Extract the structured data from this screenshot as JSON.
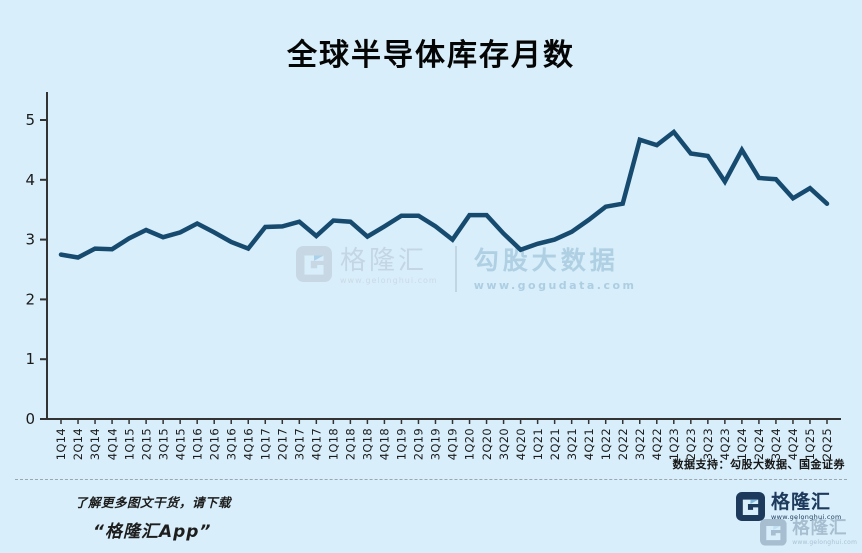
{
  "title": "全球半导体库存月数",
  "chart_data": {
    "type": "line",
    "title": "全球半导体库存月数",
    "xlabel": "",
    "ylabel": "",
    "ylim": [
      0,
      5
    ],
    "yticks": [
      0,
      1,
      2,
      3,
      4,
      5
    ],
    "grid": "off",
    "legend": "none",
    "categories": [
      "1Q14",
      "2Q14",
      "3Q14",
      "4Q14",
      "1Q15",
      "2Q15",
      "3Q15",
      "4Q15",
      "1Q16",
      "2Q16",
      "3Q16",
      "4Q16",
      "1Q17",
      "2Q17",
      "3Q17",
      "4Q17",
      "1Q18",
      "2Q18",
      "3Q18",
      "4Q18",
      "1Q19",
      "2Q19",
      "3Q19",
      "4Q19",
      "1Q20",
      "2Q20",
      "3Q20",
      "4Q20",
      "1Q21",
      "2Q21",
      "3Q21",
      "4Q21",
      "1Q22",
      "2Q22",
      "3Q22",
      "4Q22",
      "1Q23",
      "2Q23",
      "3Q23",
      "4Q23",
      "1Q24",
      "2Q24",
      "3Q24",
      "4Q24",
      "1Q25",
      "2Q25"
    ],
    "values": [
      2.75,
      2.7,
      2.85,
      2.84,
      3.02,
      3.16,
      3.04,
      3.12,
      3.27,
      3.12,
      2.96,
      2.85,
      3.21,
      3.22,
      3.3,
      3.06,
      3.32,
      3.3,
      3.05,
      3.22,
      3.4,
      3.4,
      3.22,
      3.0,
      3.41,
      3.41,
      3.1,
      2.83,
      2.93,
      3.0,
      3.13,
      3.33,
      3.55,
      3.6,
      4.67,
      4.58,
      4.8,
      4.44,
      4.4,
      3.97,
      4.5,
      4.03,
      4.01,
      3.69,
      3.86,
      3.6
    ],
    "line_color": "#164a6e",
    "background_color": "#d8eefa",
    "axis_color": "#333333",
    "source_note": "数据支持：勾股大数据、国金证券"
  },
  "watermark": {
    "gelonghui_name": "格隆汇",
    "gelonghui_url": "www.gelonghui.com",
    "gogudata_name": "勾股大数据",
    "gogudata_url": "www.gogudata.com"
  },
  "footer": {
    "promo_line1": "了解更多图文干货，请下载",
    "promo_line2": "“格隆汇App”",
    "logo_name": "格隆汇",
    "logo_url": "www.gelonghui.com"
  }
}
